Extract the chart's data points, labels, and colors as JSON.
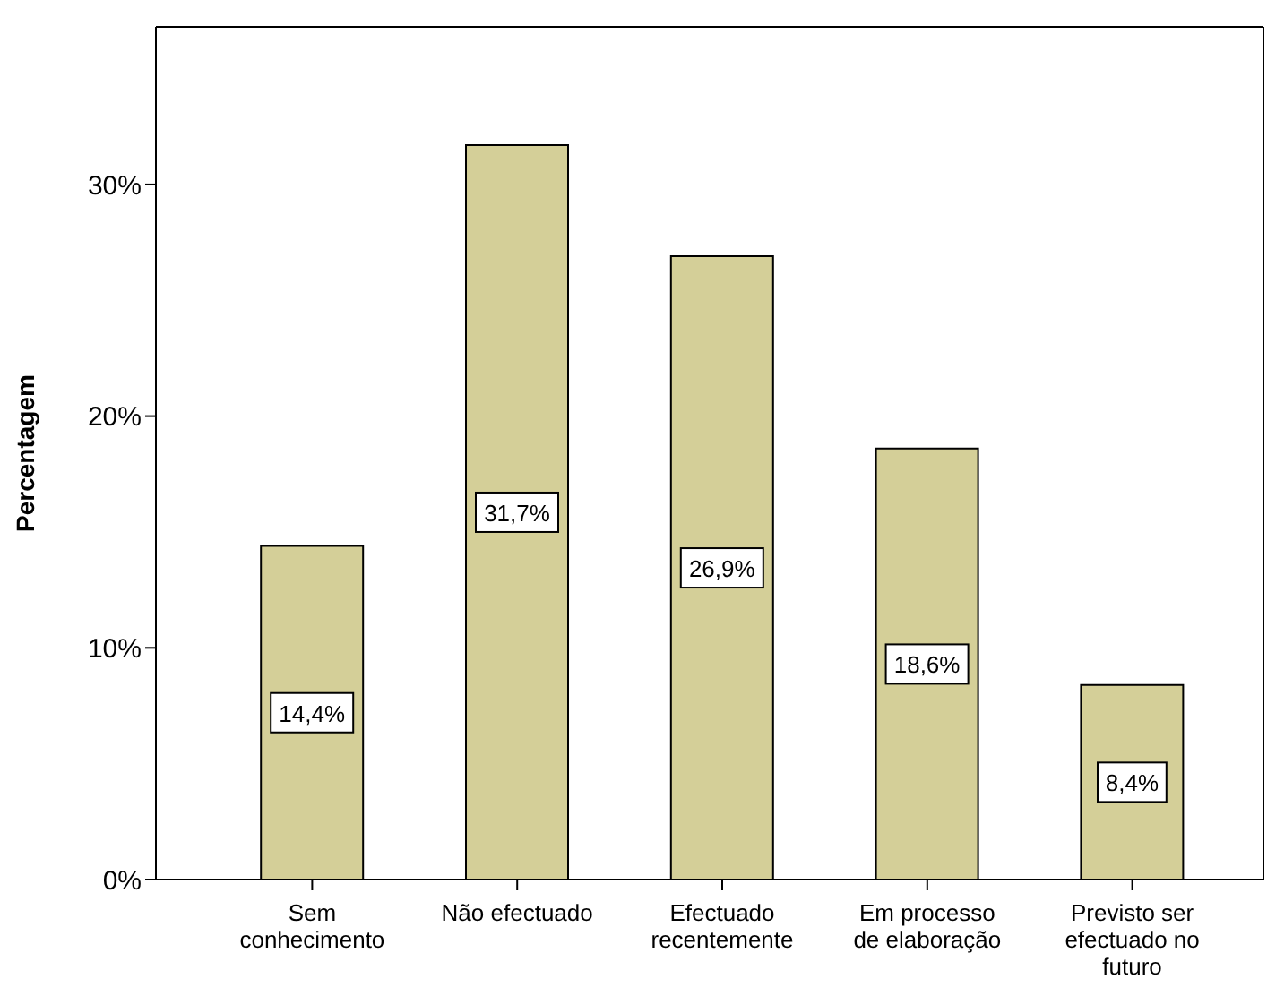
{
  "chart_data": {
    "type": "bar",
    "ylabel": "Percentagem",
    "categories": [
      "Sem conhecimento",
      "Não efectuado",
      "Efectuado recentemente",
      "Em processo de elaboração",
      "Previsto ser efectuado no futuro"
    ],
    "values": [
      14.4,
      31.7,
      26.9,
      18.6,
      8.4
    ],
    "value_labels": [
      "14,4%",
      "31,7%",
      "26,9%",
      "18,6%",
      "8,4%"
    ],
    "color": "#d4cf98",
    "ylim": [
      0,
      36.8
    ],
    "yticks": [
      {
        "value": 0,
        "label": "0%"
      },
      {
        "value": 10,
        "label": "10%"
      },
      {
        "value": 20,
        "label": "20%"
      },
      {
        "value": 30,
        "label": "30%"
      }
    ]
  }
}
